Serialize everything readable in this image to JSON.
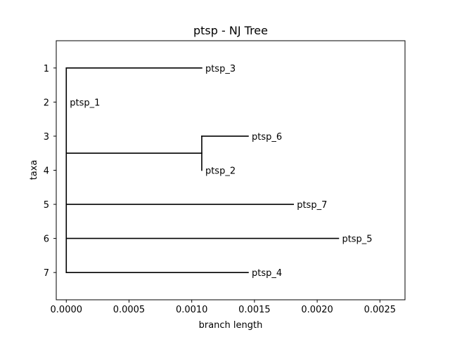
{
  "chart_data": {
    "type": "tree",
    "title": "ptsp - NJ Tree",
    "xlabel": "branch length",
    "ylabel": "taxa",
    "xlim": [
      -8e-05,
      0.0027
    ],
    "ylim": [
      7.8,
      0.2
    ],
    "x_ticks": [
      {
        "value": 0.0,
        "label": "0.0000"
      },
      {
        "value": 0.0005,
        "label": "0.0005"
      },
      {
        "value": 0.001,
        "label": "0.0010"
      },
      {
        "value": 0.0015,
        "label": "0.0015"
      },
      {
        "value": 0.002,
        "label": "0.0020"
      },
      {
        "value": 0.0025,
        "label": "0.0025"
      }
    ],
    "y_ticks": [
      {
        "value": 1,
        "label": "1"
      },
      {
        "value": 2,
        "label": "2"
      },
      {
        "value": 3,
        "label": "3"
      },
      {
        "value": 4,
        "label": "4"
      },
      {
        "value": 5,
        "label": "5"
      },
      {
        "value": 6,
        "label": "6"
      },
      {
        "value": 7,
        "label": "7"
      }
    ],
    "taxa": [
      {
        "name": "ptsp_3",
        "y": 1,
        "x": 0.00108
      },
      {
        "name": "ptsp_1",
        "y": 2,
        "x": 0.0
      },
      {
        "name": "ptsp_6",
        "y": 3,
        "x": 0.00145
      },
      {
        "name": "ptsp_2",
        "y": 4,
        "x": 0.00108
      },
      {
        "name": "ptsp_7",
        "y": 5,
        "x": 0.00181
      },
      {
        "name": "ptsp_5",
        "y": 6,
        "x": 0.00217
      },
      {
        "name": "ptsp_4",
        "y": 7,
        "x": 0.00145
      }
    ],
    "branches": [
      {
        "x1": 0.0,
        "y1": 1,
        "x2": 0.0,
        "y2": 7
      },
      {
        "x1": 0.0,
        "y1": 1,
        "x2": 0.00108,
        "y2": 1
      },
      {
        "x1": 0.0,
        "y1": 3.5,
        "x2": 0.00108,
        "y2": 3.5
      },
      {
        "x1": 0.00108,
        "y1": 3,
        "x2": 0.00108,
        "y2": 4
      },
      {
        "x1": 0.00108,
        "y1": 3,
        "x2": 0.00145,
        "y2": 3
      },
      {
        "x1": 0.0,
        "y1": 5,
        "x2": 0.00181,
        "y2": 5
      },
      {
        "x1": 0.0,
        "y1": 6,
        "x2": 0.00217,
        "y2": 6
      },
      {
        "x1": 0.0,
        "y1": 7,
        "x2": 0.00145,
        "y2": 7
      }
    ],
    "grid": false,
    "line_color": "#000000"
  }
}
